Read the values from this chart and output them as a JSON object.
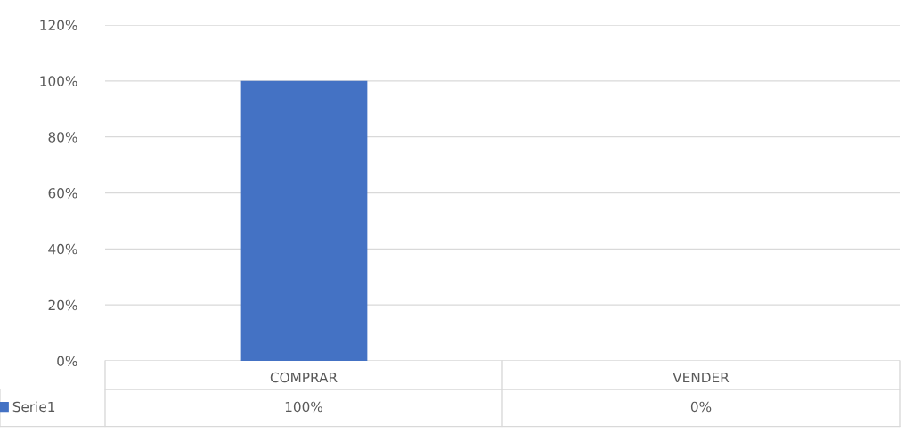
{
  "chart_data": {
    "type": "bar",
    "categories": [
      "COMPRAR",
      "VENDER"
    ],
    "series": [
      {
        "name": "Serie1",
        "color": "#4472c4",
        "values": [
          100,
          0
        ],
        "value_labels": [
          "100%",
          "0%"
        ]
      }
    ],
    "ylim": [
      0,
      120
    ],
    "yticks": [
      {
        "value": 0,
        "label": "0%"
      },
      {
        "value": 20,
        "label": "20%"
      },
      {
        "value": 40,
        "label": "40%"
      },
      {
        "value": 60,
        "label": "60%"
      },
      {
        "value": 80,
        "label": "80%"
      },
      {
        "value": 100,
        "label": "100%"
      },
      {
        "value": 120,
        "label": "120%"
      }
    ],
    "grid": "y",
    "legend": "bottom left"
  }
}
